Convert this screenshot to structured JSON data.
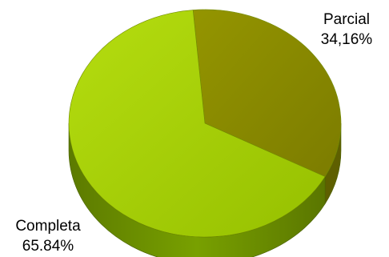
{
  "chart_data": {
    "type": "pie",
    "style": "3d",
    "slices": [
      {
        "category": "Parcial",
        "value_label": "34,16%",
        "value": 34.16,
        "color": "#8a8c00"
      },
      {
        "category": "Completa",
        "value_label": "65.84%",
        "value": 65.84,
        "color": "#a3cc00"
      }
    ],
    "legend": "none"
  }
}
